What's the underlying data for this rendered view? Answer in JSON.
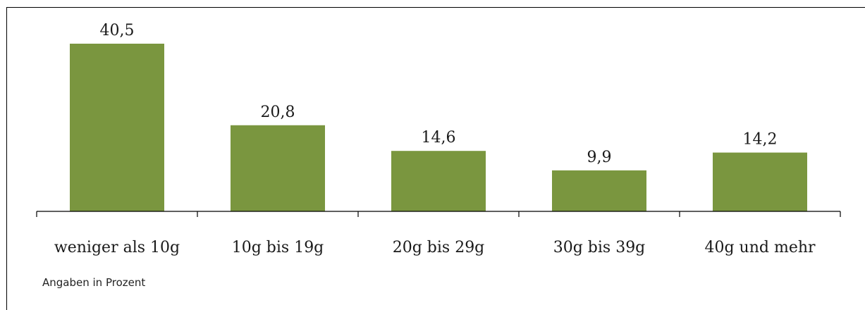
{
  "chart_data": {
    "type": "bar",
    "categories": [
      "weniger als 10g",
      "10g bis 19g",
      "20g bis 29g",
      "30g bis 39g",
      "40g und mehr"
    ],
    "values": [
      40.5,
      20.8,
      14.6,
      9.9,
      14.2
    ],
    "value_labels": [
      "40,5",
      "20,8",
      "14,6",
      "9,9",
      "14,2"
    ],
    "title": "",
    "xlabel": "",
    "ylabel": "",
    "ylim": [
      0,
      40.5
    ],
    "grid": false,
    "legend": "none",
    "bar_color": "#7a963f"
  },
  "footnote": "Angaben in Prozent"
}
